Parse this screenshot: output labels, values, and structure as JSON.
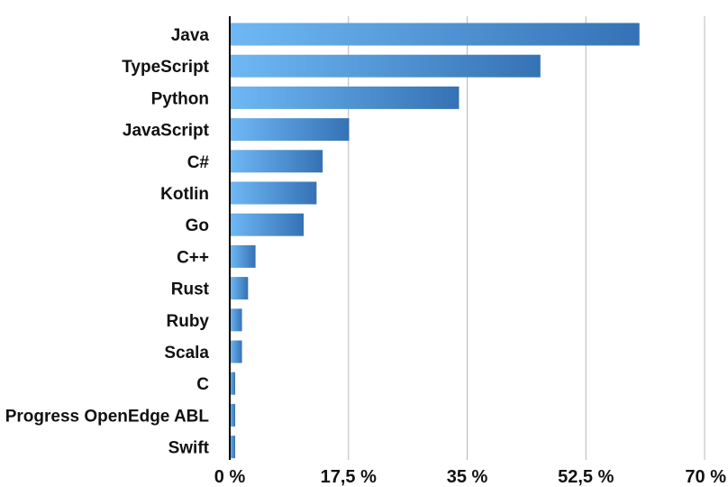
{
  "chart_data": {
    "type": "bar",
    "orientation": "horizontal",
    "title": "",
    "xlabel": "",
    "ylabel": "",
    "categories": [
      "Java",
      "TypeScript",
      "Python",
      "JavaScript",
      "C#",
      "Kotlin",
      "Go",
      "C++",
      "Rust",
      "Ruby",
      "Scala",
      "C",
      "Progress OpenEdge ABL",
      "Swift"
    ],
    "values": [
      60.4,
      45.8,
      33.8,
      17.6,
      13.7,
      12.8,
      10.9,
      3.8,
      2.7,
      1.8,
      1.8,
      0.8,
      0.8,
      0.8
    ],
    "unit": "%",
    "xlim": [
      0,
      70
    ],
    "xticks": [
      0,
      17.5,
      35,
      52.5,
      70
    ],
    "xtick_labels": [
      "0 %",
      "17,5 %",
      "35 %",
      "52,5 %",
      "70 %"
    ],
    "grid": true,
    "legend": "none",
    "colors": {
      "bar_light": "#6fb8f5",
      "bar_dark": "#3572b5"
    }
  }
}
